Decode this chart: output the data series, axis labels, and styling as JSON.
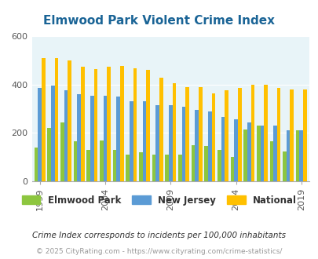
{
  "title": "Elmwood Park Violent Crime Index",
  "title_color": "#1a6496",
  "years": [
    1999,
    2000,
    2001,
    2002,
    2003,
    2004,
    2005,
    2006,
    2007,
    2008,
    2009,
    2010,
    2011,
    2012,
    2013,
    2014,
    2015,
    2016,
    2017,
    2018,
    2019
  ],
  "elmwood_park": [
    140,
    220,
    245,
    165,
    130,
    170,
    130,
    110,
    120,
    110,
    110,
    110,
    150,
    145,
    130,
    100,
    215,
    230,
    165,
    125,
    210
  ],
  "new_jersey": [
    385,
    395,
    375,
    360,
    355,
    355,
    350,
    330,
    330,
    315,
    315,
    310,
    295,
    290,
    265,
    255,
    245,
    230,
    230,
    210,
    210
  ],
  "national": [
    510,
    510,
    500,
    475,
    465,
    475,
    477,
    467,
    460,
    430,
    405,
    390,
    390,
    365,
    375,
    385,
    400,
    398,
    385,
    380,
    379
  ],
  "bar_colors": {
    "elmwood_park": "#8dc63f",
    "new_jersey": "#5b9bd5",
    "national": "#ffc000"
  },
  "background_color": "#e8f4f8",
  "ylim": [
    0,
    600
  ],
  "yticks": [
    0,
    200,
    400,
    600
  ],
  "xtick_years": [
    1999,
    2004,
    2009,
    2014,
    2019
  ],
  "footnote1": "Crime Index corresponds to incidents per 100,000 inhabitants",
  "footnote2": "© 2025 CityRating.com - https://www.cityrating.com/crime-statistics/",
  "footnote1_color": "#333333",
  "footnote2_color": "#999999"
}
